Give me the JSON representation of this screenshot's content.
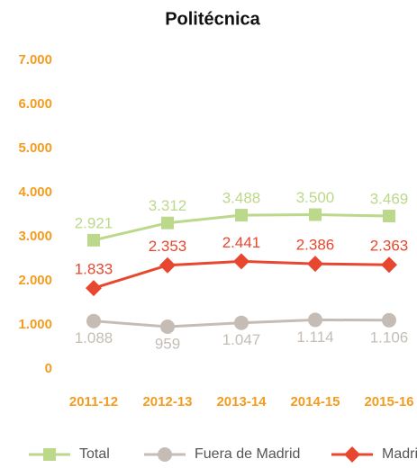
{
  "chart_data": {
    "type": "line",
    "title": "Politécnica",
    "categories": [
      "2011-12",
      "2012-13",
      "2013-14",
      "2014-15",
      "2015-16"
    ],
    "series": [
      {
        "name": "Total",
        "color": "#bcd88a",
        "marker": "square",
        "values": [
          2921,
          3312,
          3488,
          3500,
          3469
        ],
        "value_labels": [
          "2.921",
          "3.312",
          "3.488",
          "3.500",
          "3.469"
        ]
      },
      {
        "name": "Fuera de Madrid",
        "color": "#c5bdb5",
        "marker": "circle",
        "values": [
          1088,
          959,
          1047,
          1114,
          1106
        ],
        "value_labels": [
          "1.088",
          "959",
          "1.047",
          "1.114",
          "1.106"
        ]
      },
      {
        "name": "Madrid",
        "color": "#e8472f",
        "marker": "diamond",
        "values": [
          1833,
          2353,
          2441,
          2386,
          2363
        ],
        "value_labels": [
          "1.833",
          "2.353",
          "2.441",
          "2.386",
          "2.363"
        ]
      }
    ],
    "ylim": [
      0,
      7000
    ],
    "yticks": [
      0,
      {
        "value": 1000,
        "label": "1.000"
      },
      {
        "value": 2000,
        "label": "2.000"
      },
      {
        "value": 3000,
        "label": "3.000"
      },
      {
        "value": 4000,
        "label": "4.000"
      },
      {
        "value": 5000,
        "label": "5.000"
      },
      {
        "value": 6000,
        "label": "6.000"
      },
      {
        "value": 7000,
        "label": "7.000"
      }
    ],
    "grid": false
  }
}
